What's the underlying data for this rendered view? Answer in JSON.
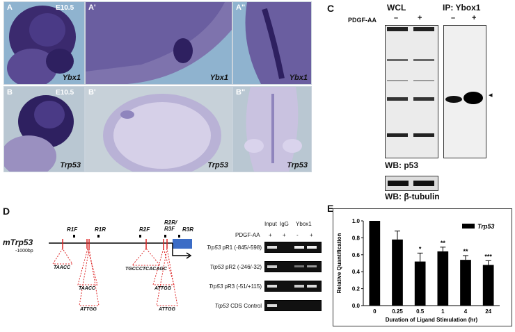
{
  "panel_a_b": {
    "panels": [
      {
        "letter": "A",
        "stage": "E10.5",
        "gene": "Ybx1"
      },
      {
        "letter": "A'",
        "stage": "",
        "gene": "Ybx1"
      },
      {
        "letter": "A\"",
        "stage": "",
        "gene": "Ybx1"
      },
      {
        "letter": "B",
        "stage": "E10.5",
        "gene": "Trp53"
      },
      {
        "letter": "B'",
        "stage": "",
        "gene": "Trp53"
      },
      {
        "letter": "B\"",
        "stage": "",
        "gene": "Trp53"
      }
    ],
    "colors": {
      "stain": "#3b2a6e",
      "bg": "#8fb3cf",
      "bg_b": "#c7d1d9"
    }
  },
  "panel_c": {
    "letter": "C",
    "wcl": "WCL",
    "ip": "IP: Ybox1",
    "treatment": "PDGF-AA",
    "lanes": [
      "–",
      "+",
      "–",
      "+"
    ],
    "wb_p53": "WB: p53",
    "wb_tubulin": "WB: β-tubulin",
    "arrow": "◂"
  },
  "panel_d": {
    "letter": "D",
    "gene": "mTrp53",
    "offset": "-1000bp",
    "primers": [
      "R1F",
      "R1R",
      "R2F",
      "R2R/\nR3F",
      "R3R"
    ],
    "sites": [
      "TAACC",
      "TAACC",
      "ATTGG",
      "TGCCCTCACAGC",
      "ATTGG",
      "ATTGG"
    ],
    "gel_headers": {
      "input": "Input",
      "igg": "IgG",
      "ybox": "Ybox1"
    },
    "pdgf": "PDGF-AA",
    "pdgf_signs": [
      "+",
      "+",
      "-",
      "+"
    ],
    "rows": [
      {
        "gene": "Trp53",
        "rest": " pR1 (-845/-598)"
      },
      {
        "gene": "Trp53",
        "rest": " pR2 (-246/-32)"
      },
      {
        "gene": "Trp53",
        "rest": " pR3 (-51/+115)"
      },
      {
        "gene": "Trp53",
        "rest": " CDS Control"
      }
    ]
  },
  "panel_e": {
    "letter": "E",
    "chart_data": {
      "type": "bar",
      "categories": [
        "0",
        "0.25",
        "0.5",
        "1",
        "4",
        "24"
      ],
      "values": [
        1.0,
        0.78,
        0.52,
        0.64,
        0.54,
        0.48
      ],
      "errors": [
        0,
        0.1,
        0.1,
        0.05,
        0.05,
        0.05
      ],
      "significance": [
        "",
        "",
        "*",
        "**",
        "**",
        "***"
      ],
      "series": [
        {
          "name": "Trp53"
        }
      ],
      "xlabel": "Duration of Ligand Stimulation (hr)",
      "ylabel": "Relative Quantification",
      "ylim": [
        0,
        1.0
      ],
      "yticks": [
        "0.0",
        "0.2",
        "0.4",
        "0.6",
        "0.8",
        "1.0"
      ],
      "legend": "top-right",
      "color": "#000000"
    }
  }
}
